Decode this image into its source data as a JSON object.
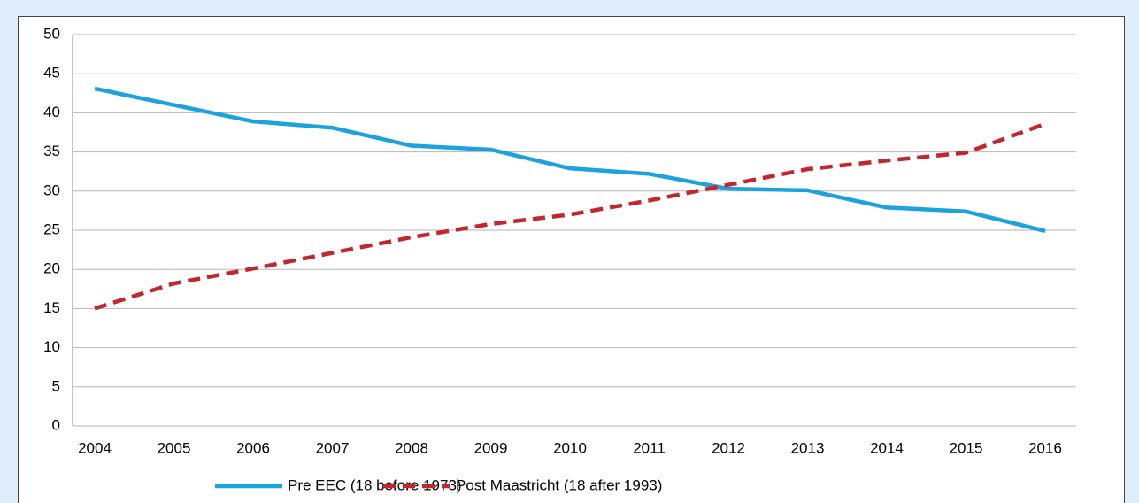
{
  "chart_data": {
    "type": "line",
    "categories": [
      "2004",
      "2005",
      "2006",
      "2007",
      "2008",
      "2009",
      "2010",
      "2011",
      "2012",
      "2013",
      "2014",
      "2015",
      "2016"
    ],
    "series": [
      {
        "name": "Pre EEC (18 before 1973)",
        "color": "#1ca3dd",
        "dashed": false,
        "values": [
          43.1,
          41.0,
          38.9,
          38.1,
          35.8,
          35.3,
          32.9,
          32.2,
          30.3,
          30.1,
          27.9,
          27.4,
          24.9
        ]
      },
      {
        "name": "Post Maastricht (18 after 1993)",
        "color": "#c1272d",
        "dashed": true,
        "values": [
          15.0,
          18.2,
          20.1,
          22.1,
          24.1,
          25.8,
          27.0,
          28.8,
          30.8,
          32.8,
          33.9,
          34.9,
          38.6
        ]
      }
    ],
    "ylim": [
      0,
      50
    ],
    "yticks": [
      0,
      5,
      10,
      15,
      20,
      25,
      30,
      35,
      40,
      45,
      50
    ],
    "grid": true,
    "legend": "bottom"
  }
}
